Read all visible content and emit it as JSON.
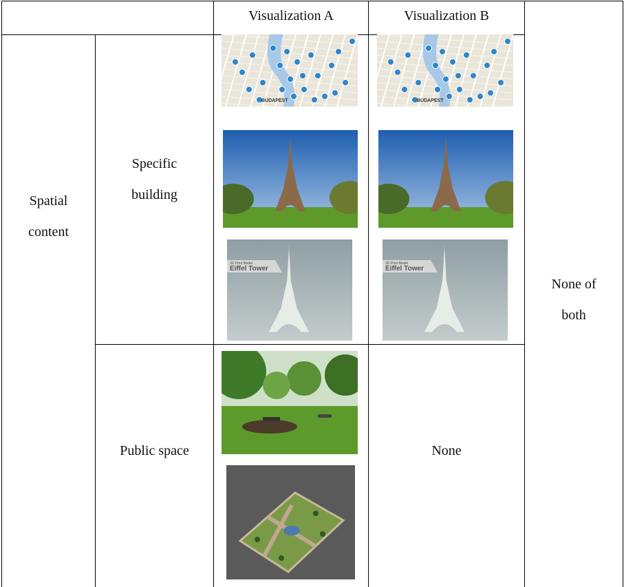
{
  "header": {
    "columns": [
      "Visualization A",
      "Visualization B"
    ]
  },
  "row_group": "Spatial content",
  "rows": [
    {
      "label": "Specific building"
    },
    {
      "label": "Public space",
      "visualization_b": "None"
    }
  ],
  "last_column": "None of both",
  "image_texts": {
    "map": "BUDAPEST",
    "model_caption": "3D Print Model",
    "model_title": "Eiffel Tower"
  }
}
